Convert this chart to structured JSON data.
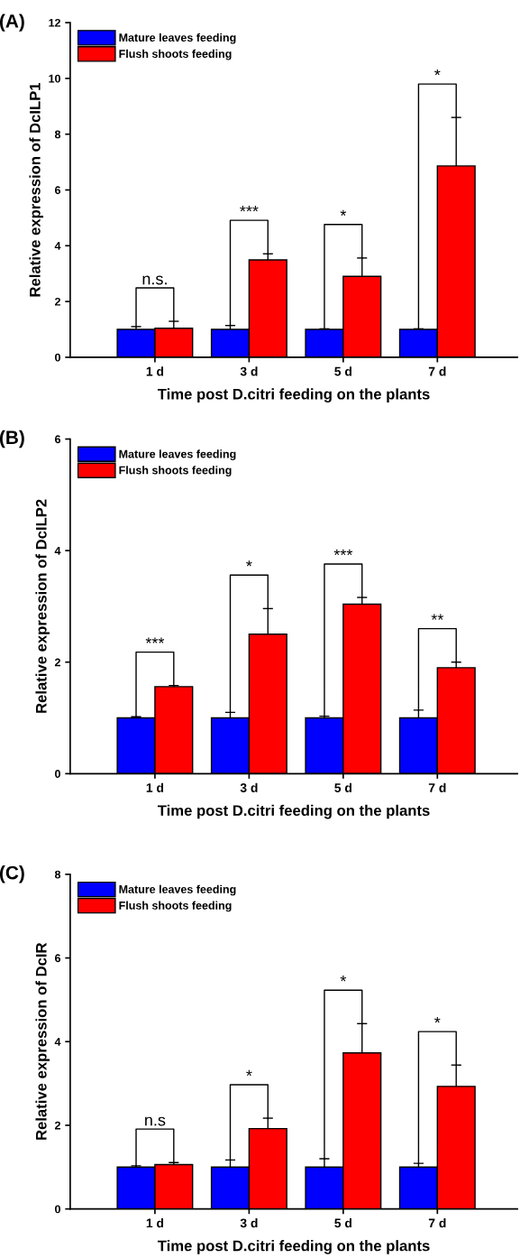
{
  "chart_data": [
    {
      "type": "bar",
      "title": "(A)",
      "xlabel": "Time post D.citri feeding on the plants",
      "ylabel": "Relative expression of DcILP1",
      "categories": [
        "1 d",
        "3 d",
        "5 d",
        "7 d"
      ],
      "series": [
        {
          "name": "Mature leaves feeding",
          "color": "#0000ff",
          "values": [
            1.0,
            1.0,
            1.0,
            1.0
          ],
          "errors": [
            0.1,
            0.14,
            0.02,
            0.02
          ]
        },
        {
          "name": "Flush shoots feeding",
          "color": "#ff0000",
          "values": [
            1.04,
            3.49,
            2.9,
            6.86
          ],
          "errors": [
            0.25,
            0.22,
            0.66,
            1.74
          ]
        }
      ],
      "ylim": [
        0,
        12
      ],
      "yticks": [
        0,
        2,
        4,
        6,
        8,
        10,
        12
      ],
      "legend": "top left",
      "annotations": [
        "n.s.",
        "***",
        "*",
        "*"
      ]
    },
    {
      "type": "bar",
      "title": "(B)",
      "xlabel": "Time post D.citri feeding on the plants",
      "ylabel": "Relative expression of DcILP2",
      "categories": [
        "1 d",
        "3 d",
        "5 d",
        "7 d"
      ],
      "series": [
        {
          "name": "Mature leaves feeding",
          "color": "#0000ff",
          "values": [
            1.0,
            1.0,
            1.0,
            1.0
          ],
          "errors": [
            0.02,
            0.1,
            0.03,
            0.14
          ]
        },
        {
          "name": "Flush shoots feeding",
          "color": "#ff0000",
          "values": [
            1.56,
            2.5,
            3.04,
            1.9
          ],
          "errors": [
            0.02,
            0.46,
            0.12,
            0.1
          ]
        }
      ],
      "ylim": [
        0,
        6
      ],
      "yticks": [
        0,
        2,
        4,
        6
      ],
      "legend": "top left",
      "annotations": [
        "***",
        "*",
        "***",
        "**"
      ]
    },
    {
      "type": "bar",
      "title": "(C)",
      "xlabel": "Time post D.citri feeding on the plants",
      "ylabel": "Relative expression of DcIR",
      "categories": [
        "1 d",
        "3 d",
        "5 d",
        "7 d"
      ],
      "series": [
        {
          "name": "Mature leaves feeding",
          "color": "#0000ff",
          "values": [
            1.0,
            1.0,
            1.0,
            1.0
          ],
          "errors": [
            0.03,
            0.17,
            0.2,
            0.09
          ]
        },
        {
          "name": "Flush shoots feeding",
          "color": "#ff0000",
          "values": [
            1.06,
            1.92,
            3.73,
            2.93
          ],
          "errors": [
            0.05,
            0.25,
            0.7,
            0.51
          ]
        }
      ],
      "ylim": [
        0,
        8
      ],
      "yticks": [
        0,
        2,
        4,
        6,
        8
      ],
      "legend": "top left",
      "annotations": [
        "n.s",
        "*",
        "*",
        "*"
      ]
    }
  ]
}
